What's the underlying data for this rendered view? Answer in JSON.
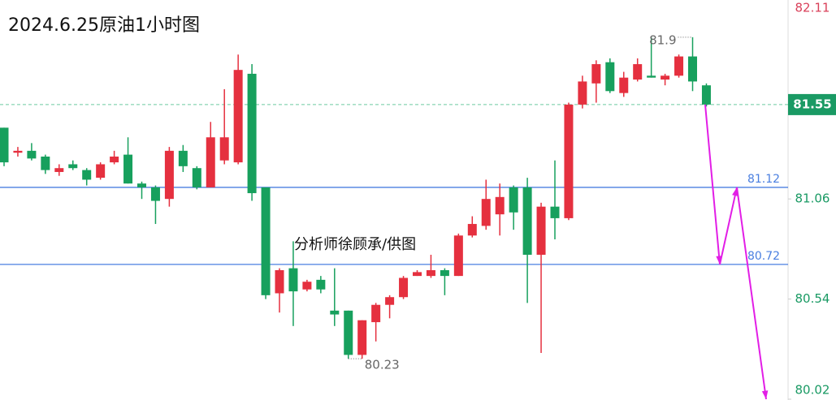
{
  "chart_data": {
    "type": "candlestick",
    "title": "2024.6.25原油1小时图",
    "watermark": "分析师徐顾承/供图",
    "up_color": "#e5303f",
    "down_color": "#17a05d",
    "open": [
      81.43,
      81.3,
      81.31,
      81.28,
      81.2,
      81.24,
      81.21,
      81.17,
      81.25,
      81.29,
      81.14,
      81.12,
      81.06,
      81.31,
      81.22,
      81.12,
      81.26,
      81.25,
      81.71,
      81.12,
      80.57,
      80.7,
      80.59,
      80.64,
      80.48,
      80.48,
      80.25,
      80.42,
      80.51,
      80.55,
      80.66,
      80.66,
      80.69,
      80.66,
      80.87,
      80.92,
      80.98,
      81.12,
      81.12,
      80.77,
      81.02,
      80.96,
      81.55,
      81.66,
      81.77,
      81.61,
      81.68,
      81.7,
      81.68,
      81.7,
      81.8,
      81.65
    ],
    "high": [
      81.43,
      81.33,
      81.35,
      81.29,
      81.24,
      81.26,
      81.22,
      81.25,
      81.31,
      81.38,
      81.15,
      81.13,
      81.33,
      81.34,
      81.23,
      81.46,
      81.63,
      81.81,
      81.76,
      81.12,
      80.7,
      80.84,
      80.64,
      80.66,
      80.7,
      80.48,
      80.43,
      80.52,
      80.56,
      80.66,
      80.69,
      80.77,
      80.7,
      80.88,
      80.97,
      81.16,
      81.14,
      81.13,
      81.17,
      81.04,
      81.26,
      81.56,
      81.7,
      81.78,
      81.79,
      81.72,
      81.79,
      81.9,
      81.71,
      81.81,
      81.9,
      81.66
    ],
    "low": [
      81.23,
      81.28,
      81.26,
      81.19,
      81.18,
      81.21,
      81.13,
      81.16,
      81.24,
      81.14,
      81.06,
      80.93,
      81.02,
      81.2,
      81.11,
      81.12,
      81.24,
      81.24,
      81.05,
      80.54,
      80.47,
      80.4,
      80.58,
      80.57,
      80.4,
      80.23,
      80.23,
      80.32,
      80.44,
      80.54,
      80.66,
      80.65,
      80.56,
      80.66,
      80.86,
      80.9,
      80.87,
      80.9,
      80.52,
      80.26,
      80.85,
      80.95,
      81.53,
      81.56,
      81.61,
      81.59,
      81.67,
      81.69,
      81.65,
      81.69,
      81.62,
      81.54
    ],
    "close": [
      81.25,
      81.31,
      81.27,
      81.21,
      81.22,
      81.22,
      81.16,
      81.24,
      81.28,
      81.14,
      81.12,
      81.05,
      81.31,
      81.23,
      81.12,
      81.38,
      81.38,
      81.73,
      81.09,
      80.56,
      80.69,
      80.58,
      80.63,
      80.59,
      80.46,
      80.25,
      80.43,
      80.51,
      80.55,
      80.65,
      80.68,
      80.69,
      80.66,
      80.87,
      80.93,
      81.06,
      81.07,
      80.99,
      80.77,
      81.02,
      80.96,
      81.55,
      81.67,
      81.76,
      81.62,
      81.69,
      81.76,
      81.69,
      81.7,
      81.8,
      81.67,
      81.55
    ],
    "ylim": [
      80.02,
      82.11
    ],
    "yticks": [
      82.11,
      81.06,
      80.54,
      80.02
    ],
    "current_price": 81.55,
    "levels": [
      81.12,
      80.72
    ],
    "level_color": "#4a7fe0",
    "high_label": 81.9,
    "low_label": 80.23,
    "projection": [
      81.55,
      80.72,
      81.12,
      80.02
    ],
    "projection_color": "#e21ee6"
  }
}
